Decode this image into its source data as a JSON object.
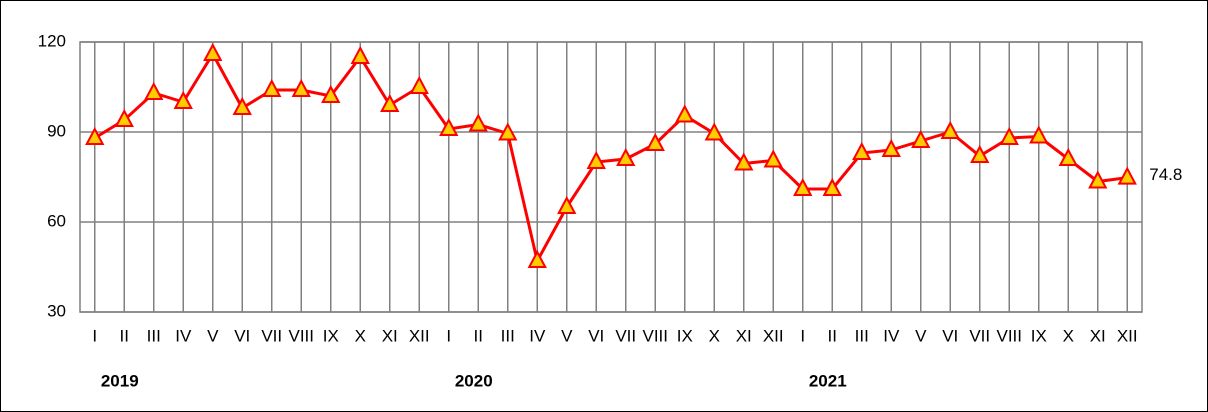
{
  "chart_data": {
    "type": "line",
    "categories": [
      "I",
      "II",
      "III",
      "IV",
      "V",
      "VI",
      "VII",
      "VIII",
      "IX",
      "X",
      "XI",
      "XII",
      "I",
      "II",
      "III",
      "IV",
      "V",
      "VI",
      "VII",
      "VIII",
      "IX",
      "X",
      "XI",
      "XII",
      "I",
      "II",
      "III",
      "IV",
      "V",
      "VI",
      "VII",
      "VIII",
      "IX",
      "X",
      "XI",
      "XII"
    ],
    "year_labels": [
      "2019",
      "2020",
      "2021"
    ],
    "series": [
      {
        "color": "#ff0000",
        "marker_color": "#ffcc00",
        "values": [
          88,
          94,
          103,
          100,
          116,
          98,
          104,
          104,
          102,
          115,
          99,
          105,
          91,
          92.5,
          89.5,
          47,
          65,
          80,
          81,
          86,
          95.5,
          89.5,
          79.5,
          80.5,
          71,
          71,
          83,
          84,
          87,
          90,
          82,
          88,
          88.5,
          81,
          73.5,
          74.8
        ]
      }
    ],
    "ylim": [
      30,
      120
    ],
    "yticks": [
      30,
      60,
      90,
      120
    ],
    "grid": true
  }
}
